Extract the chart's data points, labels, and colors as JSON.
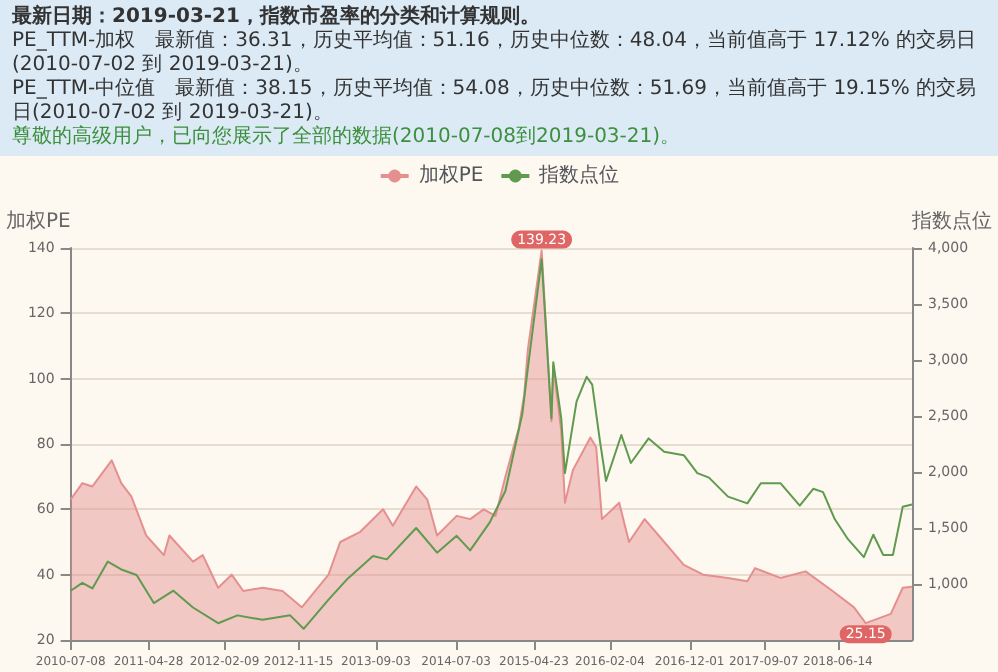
{
  "chart_data": {
    "type": "area",
    "title": "最新日期：2019-03-21，指数市盈率的分类和计算规则。",
    "annotations": [
      "PE_TTM-加权　最新值：36.31，历史平均值：51.16，历史中位数：48.04，当前值高于 17.12% 的交易日(2010-07-02 到 2019-03-21)。",
      "PE_TTM-中位值　最新值：38.15，历史平均值：54.08，历史中位数：51.69，当前值高于 19.15% 的交易日(2010-07-02 到 2019-03-21)。",
      "尊敬的高级用户，已向您展示了全部的数据(2010-07-08到2019-03-21)。"
    ],
    "ylabel": "加权PE",
    "y2label": "指数点位",
    "xlim": [
      "2010-07-08",
      "2019-03-21"
    ],
    "xticks": [
      "2010-07-08",
      "2011-04-28",
      "2012-02-09",
      "2012-11-15",
      "2013-09-03",
      "2014-07-03",
      "2015-04-23",
      "2016-02-04",
      "2016-12-01",
      "2017-09-07",
      "2018-06-14"
    ],
    "ylim": [
      20,
      140
    ],
    "yticks": [
      20,
      40,
      60,
      80,
      100,
      120,
      140
    ],
    "y2lim": [
      500,
      4000
    ],
    "y2ticks": [
      {
        "value": 1000,
        "label": "1,000"
      },
      {
        "value": 1500,
        "label": "1,500"
      },
      {
        "value": 2000,
        "label": "2,000"
      },
      {
        "value": 2500,
        "label": "2,500"
      },
      {
        "value": 3000,
        "label": "3,000"
      },
      {
        "value": 3500,
        "label": "3,500"
      },
      {
        "value": 4000,
        "label": "4,000"
      }
    ],
    "grid": "y",
    "legend": "top",
    "marker": "none",
    "line_style": "solid",
    "series": [
      {
        "name": "加权PE",
        "color": "#e58f8f",
        "value_labels": [
          null,
          null,
          null,
          null,
          null,
          null,
          null,
          null,
          null,
          null,
          null,
          null,
          null,
          null,
          null,
          null,
          null,
          null,
          null,
          null,
          null,
          null,
          null,
          null,
          null,
          null,
          null,
          null,
          null,
          null,
          null,
          null,
          null,
          "139.23",
          null,
          null,
          null,
          null,
          null,
          null,
          null,
          null,
          null,
          null,
          null,
          null,
          null,
          null,
          null,
          null,
          null,
          null,
          null,
          null,
          null,
          "25.15",
          null,
          null,
          null
        ],
        "x": [
          "2010-07-08",
          "2010-08-21",
          "2010-09-28",
          "2010-12-10",
          "2011-01-15",
          "2011-02-22",
          "2011-04-19",
          "2011-06-25",
          "2011-07-16",
          "2011-10-13",
          "2011-11-19",
          "2012-01-16",
          "2012-03-07",
          "2012-04-20",
          "2012-07-02",
          "2012-09-15",
          "2012-11-27",
          "2013-03-08",
          "2013-04-21",
          "2013-07-04",
          "2013-09-30",
          "2013-11-06",
          "2014-02-02",
          "2014-03-16",
          "2014-04-22",
          "2014-07-05",
          "2014-08-25",
          "2014-10-15",
          "2014-11-29",
          "2015-01-05",
          "2015-02-25",
          "2015-03-17",
          "2015-03-31",
          "2015-05-22",
          "2015-06-28",
          "2015-07-05",
          "2015-08-04",
          "2015-08-18",
          "2015-09-17",
          "2015-11-22",
          "2015-12-14",
          "2016-01-05",
          "2016-03-10",
          "2016-04-16",
          "2016-06-14",
          "2016-08-27",
          "2016-11-09",
          "2017-01-21",
          "2017-04-25",
          "2017-07-07",
          "2017-08-05",
          "2017-11-09",
          "2018-02-12",
          "2018-05-25",
          "2018-08-14",
          "2018-09-27",
          "2018-12-31",
          "2019-02-14",
          "2019-03-21"
        ],
        "values": [
          63,
          68,
          67,
          75,
          68,
          64,
          52,
          46,
          52,
          44,
          46,
          36,
          40,
          35,
          36,
          35,
          30,
          40,
          50,
          53,
          60,
          55,
          67,
          63,
          52,
          58,
          57,
          60,
          58,
          70,
          85,
          95,
          109,
          139.23,
          87,
          104,
          84,
          62,
          72,
          82,
          79,
          57,
          62,
          50,
          57,
          50,
          43,
          40,
          39,
          38,
          42,
          39,
          41,
          35,
          30,
          25.15,
          28,
          36,
          36.31
        ]
      },
      {
        "name": "指数点位",
        "type": "line",
        "axis": "y2",
        "color": "#5f9a4e",
        "x": [
          "2010-07-08",
          "2010-08-21",
          "2010-09-28",
          "2010-11-25",
          "2011-01-15",
          "2011-03-14",
          "2011-05-18",
          "2011-07-31",
          "2011-10-13",
          "2012-01-16",
          "2012-03-29",
          "2012-07-02",
          "2012-10-14",
          "2012-12-04",
          "2013-03-08",
          "2013-05-20",
          "2013-08-23",
          "2013-10-14",
          "2014-02-02",
          "2014-04-22",
          "2014-07-05",
          "2014-08-25",
          "2014-11-07",
          "2015-01-05",
          "2015-03-10",
          "2015-03-31",
          "2015-05-22",
          "2015-06-28",
          "2015-07-05",
          "2015-08-04",
          "2015-08-18",
          "2015-10-01",
          "2015-11-08",
          "2015-11-29",
          "2015-12-28",
          "2016-01-20",
          "2016-03-18",
          "2016-04-23",
          "2016-06-29",
          "2016-08-27",
          "2016-11-09",
          "2016-12-30",
          "2017-02-12",
          "2017-04-25",
          "2017-07-07",
          "2017-08-27",
          "2017-11-09",
          "2018-01-21",
          "2018-03-13",
          "2018-04-19",
          "2018-06-02",
          "2018-07-22",
          "2018-09-20",
          "2018-10-26",
          "2018-12-02",
          "2019-01-08",
          "2019-02-14",
          "2019-03-21"
        ],
        "values": [
          940,
          1010,
          960,
          1200,
          1130,
          1080,
          830,
          940,
          790,
          650,
          720,
          680,
          720,
          600,
          860,
          1050,
          1250,
          1220,
          1500,
          1280,
          1430,
          1300,
          1550,
          1830,
          2520,
          2930,
          3900,
          2480,
          2980,
          2480,
          1990,
          2630,
          2850,
          2780,
          2280,
          1920,
          2330,
          2080,
          2300,
          2180,
          2150,
          1990,
          1950,
          1780,
          1720,
          1900,
          1900,
          1700,
          1850,
          1820,
          1580,
          1400,
          1240,
          1440,
          1260,
          1260,
          1690,
          1710
        ]
      }
    ]
  }
}
